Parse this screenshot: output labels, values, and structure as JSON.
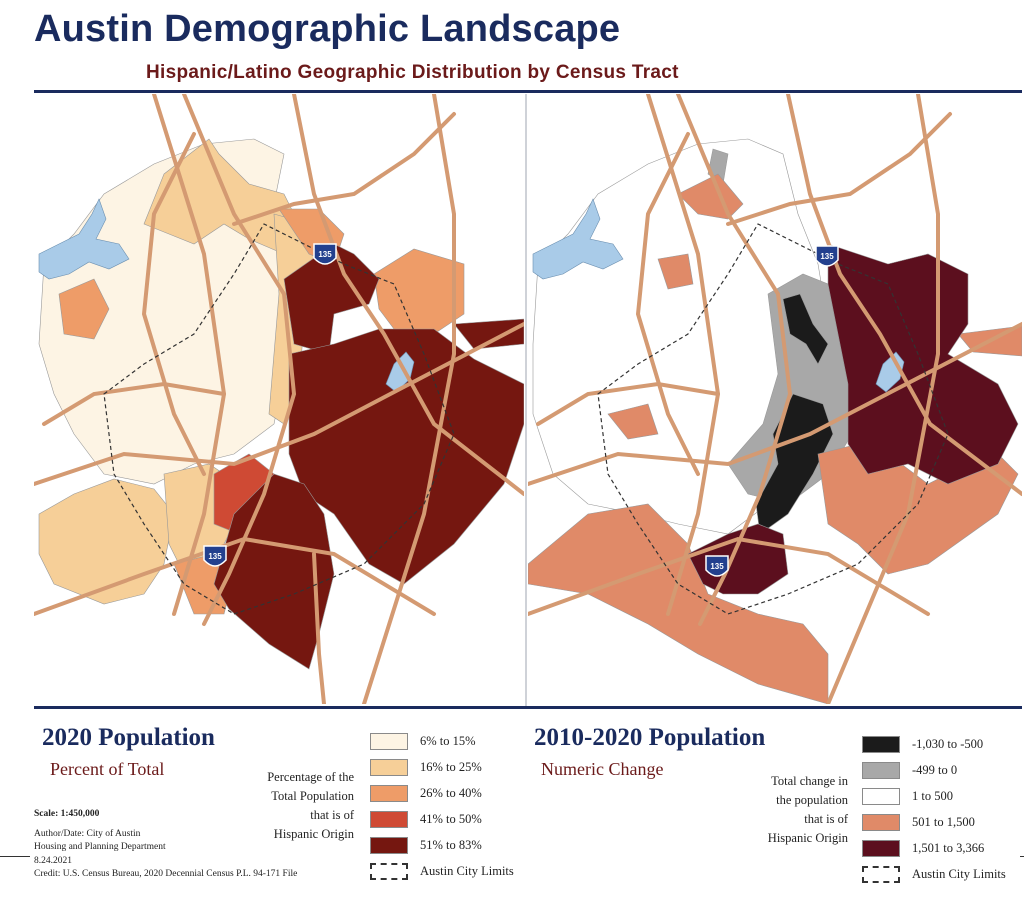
{
  "title": "Austin Demographic Landscape",
  "subtitle": "Hispanic/Latino Geographic Distribution by Census Tract",
  "colors": {
    "navy": "#1a2b5e",
    "maroon": "#6b1a1a",
    "road": "#d49a72",
    "water": "#a9cbe8",
    "left_scale": [
      "#fdf4e4",
      "#f6cf98",
      "#ee9c68",
      "#cf4a34",
      "#751710"
    ],
    "right_scale": [
      "#1b1b1b",
      "#a8a8a8",
      "#ffffff",
      "#e08a68",
      "#5c0f1e"
    ]
  },
  "highway_shield": "135",
  "left_panel": {
    "title": "2020 Population",
    "subtitle": "Percent of Total",
    "description": [
      "Percentage of the",
      "Total Population",
      "that is of",
      "Hispanic Origin"
    ],
    "legend": [
      {
        "label": "6% to 15%"
      },
      {
        "label": "16% to 25%"
      },
      {
        "label": "26% to 40%"
      },
      {
        "label": "41% to 50%"
      },
      {
        "label": "51% to 83%"
      },
      {
        "label": "Austin City Limits"
      }
    ]
  },
  "right_panel": {
    "title": "2010-2020 Population",
    "subtitle": "Numeric Change",
    "description": [
      "Total change in",
      "the population",
      "that is of",
      "Hispanic Origin"
    ],
    "legend": [
      {
        "label": "-1,030 to -500"
      },
      {
        "label": "-499 to 0"
      },
      {
        "label": "1 to 500"
      },
      {
        "label": "501 to 1,500"
      },
      {
        "label": "1,501 to 3,366"
      },
      {
        "label": "Austin City Limits"
      }
    ]
  },
  "credits": {
    "scale": "Scale: 1:450,000",
    "author_line1": "Author/Date: City of Austin",
    "author_line2": "Housing and Planning Department",
    "date": "8.24.2021",
    "source": "Credit: U.S. Census Bureau, 2020 Decennial Census P.L. 94-171 File"
  }
}
